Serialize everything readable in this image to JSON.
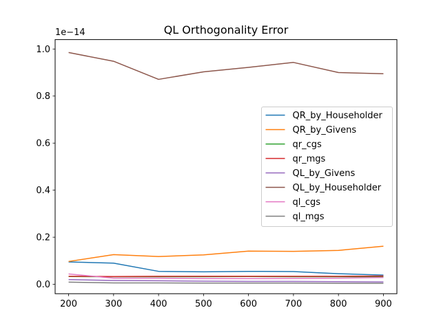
{
  "chart_data": {
    "type": "line",
    "title": "QL Orthogonality Error",
    "xlabel": "",
    "ylabel": "",
    "y_offset_text": "1e−14",
    "y_scale_factor": 1e-14,
    "x": [
      200,
      300,
      400,
      500,
      600,
      700,
      800,
      900
    ],
    "xlim": [
      170,
      930
    ],
    "ylim": [
      -0.04,
      1.04
    ],
    "x_ticks": [
      200,
      300,
      400,
      500,
      600,
      700,
      800,
      900
    ],
    "x_tick_labels": [
      "200",
      "300",
      "400",
      "500",
      "600",
      "700",
      "800",
      "900"
    ],
    "y_ticks": [
      0.0,
      0.2,
      0.4,
      0.6,
      0.8,
      1.0
    ],
    "y_tick_labels": [
      "0.0",
      "0.2",
      "0.4",
      "0.6",
      "0.8",
      "1.0"
    ],
    "grid": false,
    "legend_position": "center-right",
    "series": [
      {
        "name": "QR_by_Householder",
        "color": "#1f77b4",
        "values": [
          0.095,
          0.09,
          0.055,
          0.053,
          0.055,
          0.054,
          0.045,
          0.039
        ]
      },
      {
        "name": "QR_by_Givens",
        "color": "#ff7f0e",
        "values": [
          0.097,
          0.126,
          0.118,
          0.125,
          0.141,
          0.14,
          0.144,
          0.162
        ]
      },
      {
        "name": "qr_cgs",
        "color": "#2ca02c",
        "values": [
          0.033,
          0.032,
          0.032,
          0.032,
          0.033,
          0.032,
          0.032,
          0.032
        ]
      },
      {
        "name": "qr_mgs",
        "color": "#d62728",
        "values": [
          0.034,
          0.033,
          0.034,
          0.034,
          0.034,
          0.034,
          0.034,
          0.035
        ]
      },
      {
        "name": "QL_by_Givens",
        "color": "#9467bd",
        "values": [
          0.02,
          0.016,
          0.015,
          0.013,
          0.012,
          0.012,
          0.011,
          0.01
        ]
      },
      {
        "name": "QL_by_Householder",
        "color": "#8c564b",
        "values": [
          0.985,
          0.948,
          0.871,
          0.903,
          0.922,
          0.943,
          0.9,
          0.895
        ]
      },
      {
        "name": "ql_cgs",
        "color": "#e377c2",
        "values": [
          0.044,
          0.026,
          0.026,
          0.024,
          0.024,
          0.025,
          0.026,
          0.029
        ]
      },
      {
        "name": "ql_mgs",
        "color": "#7f7f7f",
        "values": [
          0.009,
          0.006,
          0.006,
          0.005,
          0.005,
          0.005,
          0.004,
          0.004
        ]
      }
    ]
  }
}
